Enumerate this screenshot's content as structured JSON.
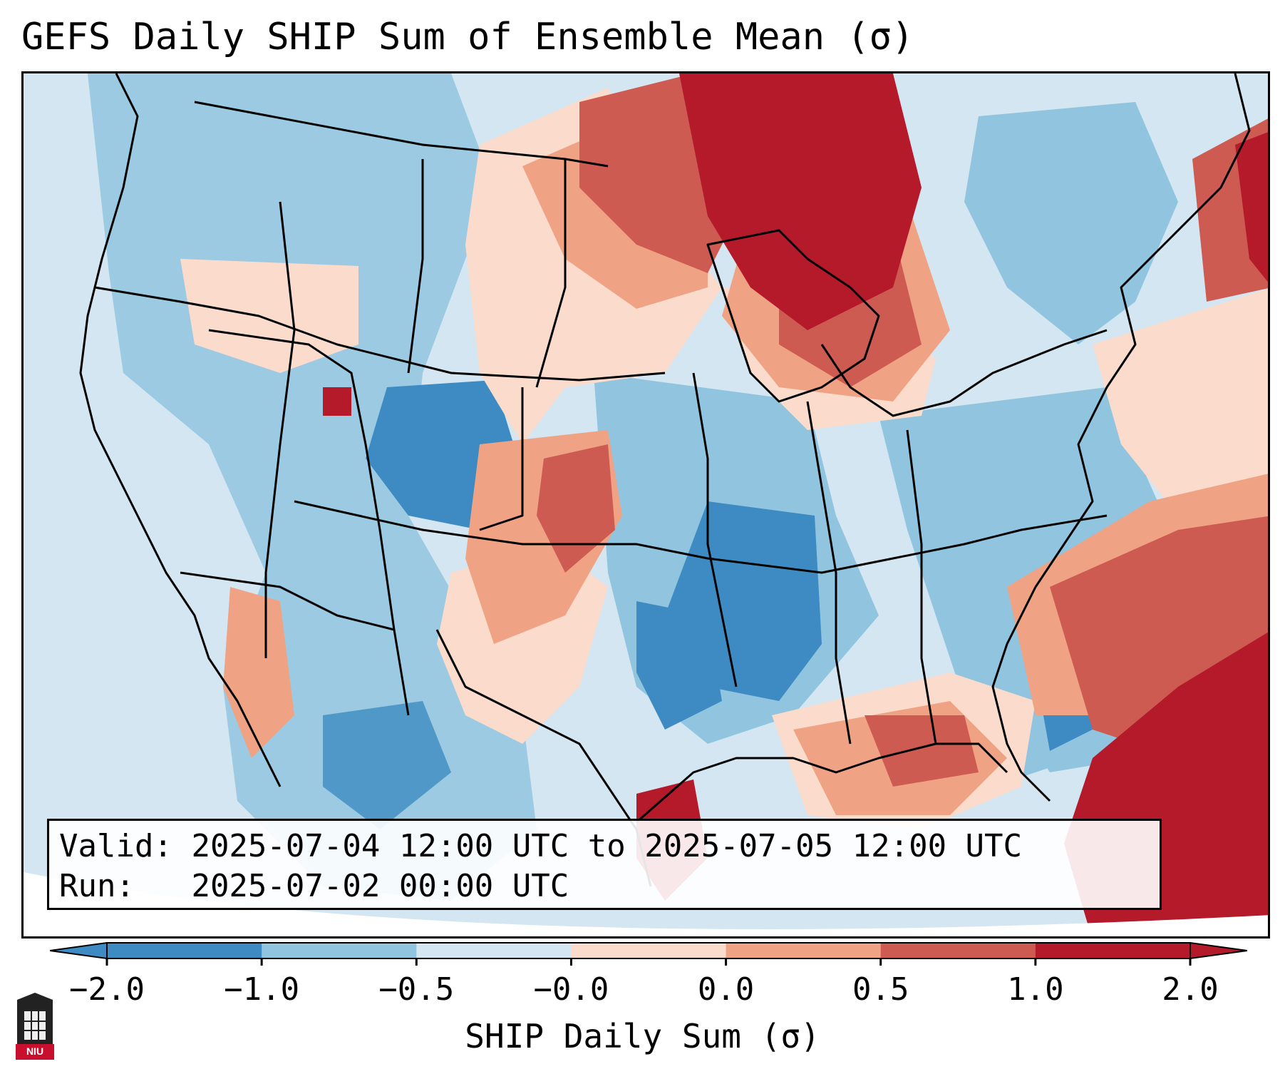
{
  "title": "GEFS Daily SHIP Sum of Ensemble Mean (σ)",
  "info": {
    "valid_label": "Valid:",
    "valid_value": "2025-07-04 12:00 UTC to 2025-07-05 12:00 UTC",
    "run_label": "Run:",
    "run_value": "2025-07-02 00:00 UTC"
  },
  "colorbar": {
    "label": "SHIP Daily Sum (σ)",
    "ticks": [
      "−2.0",
      "−1.0",
      "−0.5",
      "−0.0",
      "0.0",
      "0.5",
      "1.0",
      "2.0"
    ],
    "colors": [
      "#3d8bc2",
      "#91c4df",
      "#d3e6f1",
      "#fbdccc",
      "#f0a384",
      "#cd5b52",
      "#b51a2b"
    ]
  },
  "logo": {
    "text": "NIU",
    "icon": "niu-logo-icon"
  },
  "map_regions": [
    {
      "name": "northern-plains-great-lakes-high",
      "level": "very high"
    },
    {
      "name": "southwest-atlantic-high",
      "level": "very high"
    },
    {
      "name": "rockies-low",
      "level": "low"
    },
    {
      "name": "lower-mississippi-low",
      "level": "low"
    },
    {
      "name": "southern-plains-high",
      "level": "high"
    },
    {
      "name": "gulf-coast-high",
      "level": "high"
    }
  ]
}
